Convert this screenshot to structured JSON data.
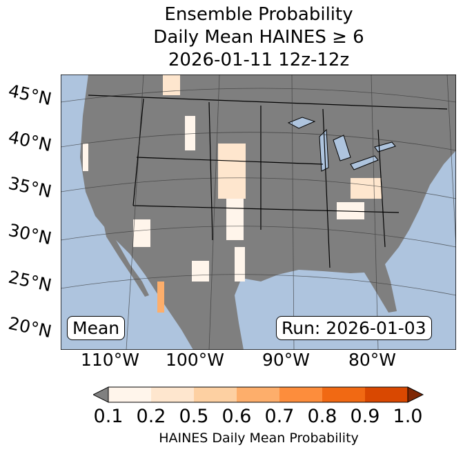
{
  "title": {
    "line1": "Ensemble Probability",
    "line2": "Daily Mean HAINES ≥ 6",
    "line3": "2026-01-11 12z-12z"
  },
  "map": {
    "lat_labels": [
      "45°N",
      "40°N",
      "35°N",
      "30°N",
      "25°N",
      "20°N"
    ],
    "lon_labels": [
      "110°W",
      "100°W",
      "90°W",
      "80°W"
    ],
    "stat_label": "Mean",
    "run_label": "Run: 2026-01-03",
    "colors": {
      "ocean": "#aec4de",
      "land": "#7f7f7f"
    }
  },
  "colorbar": {
    "ticks": [
      "0.1",
      "0.2",
      "0.5",
      "0.6",
      "0.7",
      "0.8",
      "0.9",
      "1.0"
    ],
    "colors": [
      "#fff5eb",
      "#fee6ce",
      "#fdd0a2",
      "#fdae6b",
      "#fd8d3c",
      "#f16913",
      "#d94801"
    ],
    "under_color": "#808080",
    "over_color": "#7f2704",
    "label": "HAINES Daily Mean Probability"
  }
}
